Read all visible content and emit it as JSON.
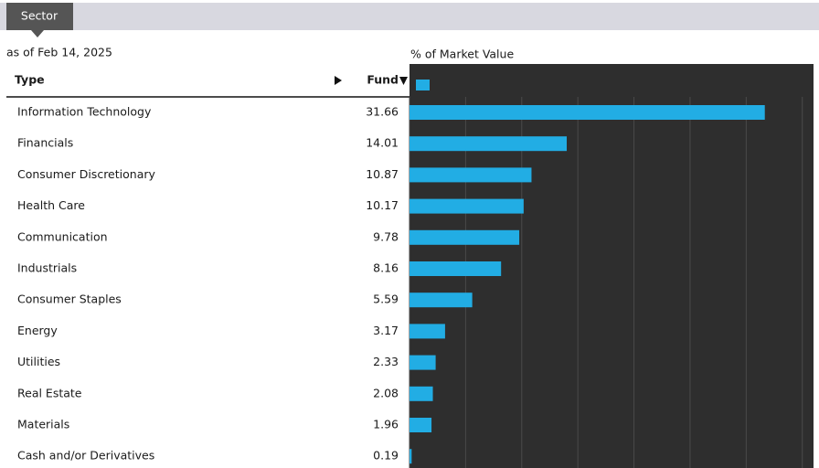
{
  "chart_data": {
    "type": "bar",
    "orientation": "horizontal",
    "tab": "Sector",
    "subtitle": "as of Feb 14, 2025",
    "title": "% of Market Value",
    "column_labels": [
      "Type",
      "Fund"
    ],
    "categories": [
      "Information Technology",
      "Financials",
      "Consumer Discretionary",
      "Health Care",
      "Communication",
      "Industrials",
      "Consumer Staples",
      "Energy",
      "Utilities",
      "Real Estate",
      "Materials",
      "Cash and/or Derivatives"
    ],
    "values": [
      31.66,
      14.01,
      10.87,
      10.17,
      9.78,
      8.16,
      5.59,
      3.17,
      2.33,
      2.08,
      1.96,
      0.19
    ],
    "color": "#22ade4",
    "xlim": [
      0,
      36
    ],
    "xticks": [
      0,
      5,
      10,
      15,
      20,
      25,
      30,
      35
    ],
    "grid": true
  }
}
